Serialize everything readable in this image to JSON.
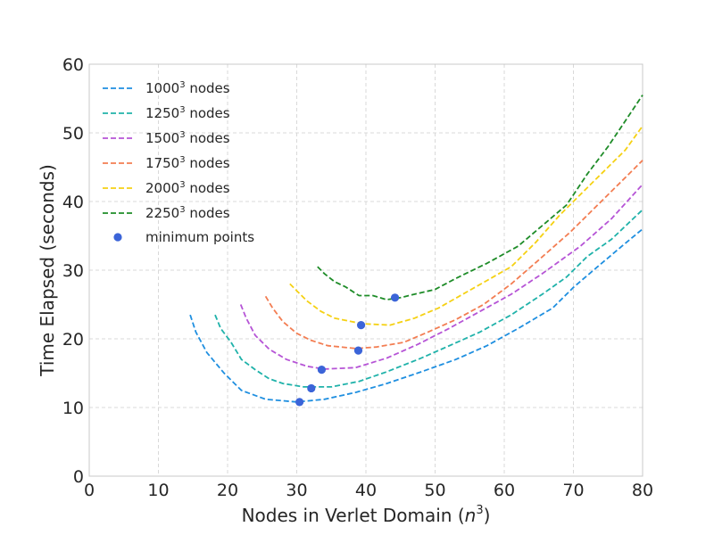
{
  "chart_data": {
    "type": "line",
    "title": "",
    "xlabel": "Nodes in Verlet Domain (",
    "xlabel_math": "n",
    "xlabel_sup": "3",
    "xlabel_close": ")",
    "ylabel": "Time Elapsed (seconds)",
    "xlim": [
      0,
      80
    ],
    "ylim": [
      0,
      60
    ],
    "xticks": [
      0,
      10,
      20,
      30,
      40,
      50,
      60,
      70,
      80
    ],
    "yticks": [
      0,
      10,
      20,
      30,
      40,
      50,
      60
    ],
    "grid": true,
    "legend_position": "top-left",
    "series": [
      {
        "name_base": "1000",
        "name_sup": "3",
        "name_suffix": " nodes",
        "color": "#1f8fe0",
        "x": [
          14.6,
          15.4,
          17.0,
          19.5,
          22.0,
          25.5,
          30.0,
          34.0,
          38.5,
          43.0,
          48.0,
          53.0,
          57.5,
          62.0,
          67.0,
          70.0,
          73.5,
          77.0,
          80.0
        ],
        "y": [
          23.5,
          21.0,
          18.0,
          15.0,
          12.5,
          11.2,
          10.8,
          11.2,
          12.2,
          13.5,
          15.2,
          17.0,
          19.0,
          21.5,
          24.5,
          27.5,
          30.5,
          33.5,
          36.0
        ]
      },
      {
        "name_base": "1250",
        "name_sup": "3",
        "name_suffix": " nodes",
        "color": "#20b2aa",
        "x": [
          18.2,
          19.0,
          20.5,
          22.0,
          24.0,
          26.0,
          28.0,
          31.0,
          35.0,
          39.0,
          43.0,
          48.0,
          52.5,
          56.5,
          61.0,
          65.5,
          69.0,
          72.0,
          75.5,
          80.0
        ],
        "y": [
          23.5,
          21.5,
          19.5,
          17.0,
          15.5,
          14.2,
          13.5,
          13.0,
          13.0,
          13.8,
          15.2,
          17.2,
          19.2,
          21.0,
          23.5,
          26.5,
          29.0,
          32.0,
          34.5,
          38.8
        ]
      },
      {
        "name_base": "1500",
        "name_sup": "3",
        "name_suffix": " nodes",
        "color": "#b654d6",
        "x": [
          21.9,
          22.7,
          24.0,
          26.0,
          28.5,
          31.5,
          34.0,
          38.5,
          43.0,
          47.5,
          52.0,
          56.5,
          61.0,
          65.5,
          71.0,
          75.5,
          80.0
        ],
        "y": [
          25.0,
          23.0,
          20.5,
          18.5,
          17.0,
          16.0,
          15.6,
          15.8,
          17.2,
          19.2,
          21.5,
          24.0,
          26.5,
          29.5,
          33.5,
          37.5,
          42.5
        ]
      },
      {
        "name_base": "1750",
        "name_sup": "3",
        "name_suffix": " nodes",
        "color": "#f37d52",
        "x": [
          25.5,
          26.5,
          28.0,
          30.0,
          32.0,
          34.5,
          38.5,
          41.5,
          45.5,
          49.0,
          53.0,
          57.0,
          61.0,
          65.0,
          69.5,
          73.0,
          76.5,
          80.0
        ],
        "y": [
          26.2,
          24.5,
          22.5,
          20.8,
          19.8,
          19.0,
          18.6,
          18.8,
          19.5,
          21.0,
          22.8,
          25.0,
          28.0,
          31.5,
          35.5,
          39.0,
          42.5,
          46.0
        ]
      },
      {
        "name_base": "2000",
        "name_sup": "3",
        "name_suffix": " nodes",
        "color": "#f5d114",
        "x": [
          29.0,
          30.0,
          31.5,
          33.5,
          35.5,
          39.5,
          43.5,
          47.0,
          50.5,
          54.0,
          57.5,
          61.0,
          64.5,
          68.0,
          71.5,
          74.5,
          77.5,
          80.0
        ],
        "y": [
          28.0,
          27.0,
          25.5,
          24.0,
          23.0,
          22.2,
          22.0,
          23.0,
          24.5,
          26.5,
          28.5,
          30.5,
          34.0,
          38.0,
          41.5,
          44.5,
          47.5,
          51.0
        ]
      },
      {
        "name_base": "2250",
        "name_sup": "3",
        "name_suffix": " nodes",
        "color": "#1e8c28",
        "x": [
          33.0,
          34.0,
          35.5,
          37.0,
          39.0,
          41.0,
          43.0,
          45.0,
          47.0,
          50.0,
          53.0,
          57.5,
          62.0,
          65.5,
          69.0,
          72.0,
          75.0,
          78.0,
          80.0
        ],
        "y": [
          30.5,
          29.5,
          28.3,
          27.6,
          26.3,
          26.3,
          25.7,
          26.0,
          26.5,
          27.2,
          28.8,
          31.0,
          33.5,
          36.5,
          39.5,
          44.0,
          48.0,
          52.5,
          55.5
        ]
      }
    ],
    "minimum_points": {
      "name": "minimum points",
      "color": "#3b64d8",
      "x": [
        30.4,
        32.1,
        33.6,
        38.9,
        39.3,
        44.2
      ],
      "y": [
        10.8,
        12.8,
        15.5,
        18.3,
        22.0,
        26.0
      ]
    }
  }
}
